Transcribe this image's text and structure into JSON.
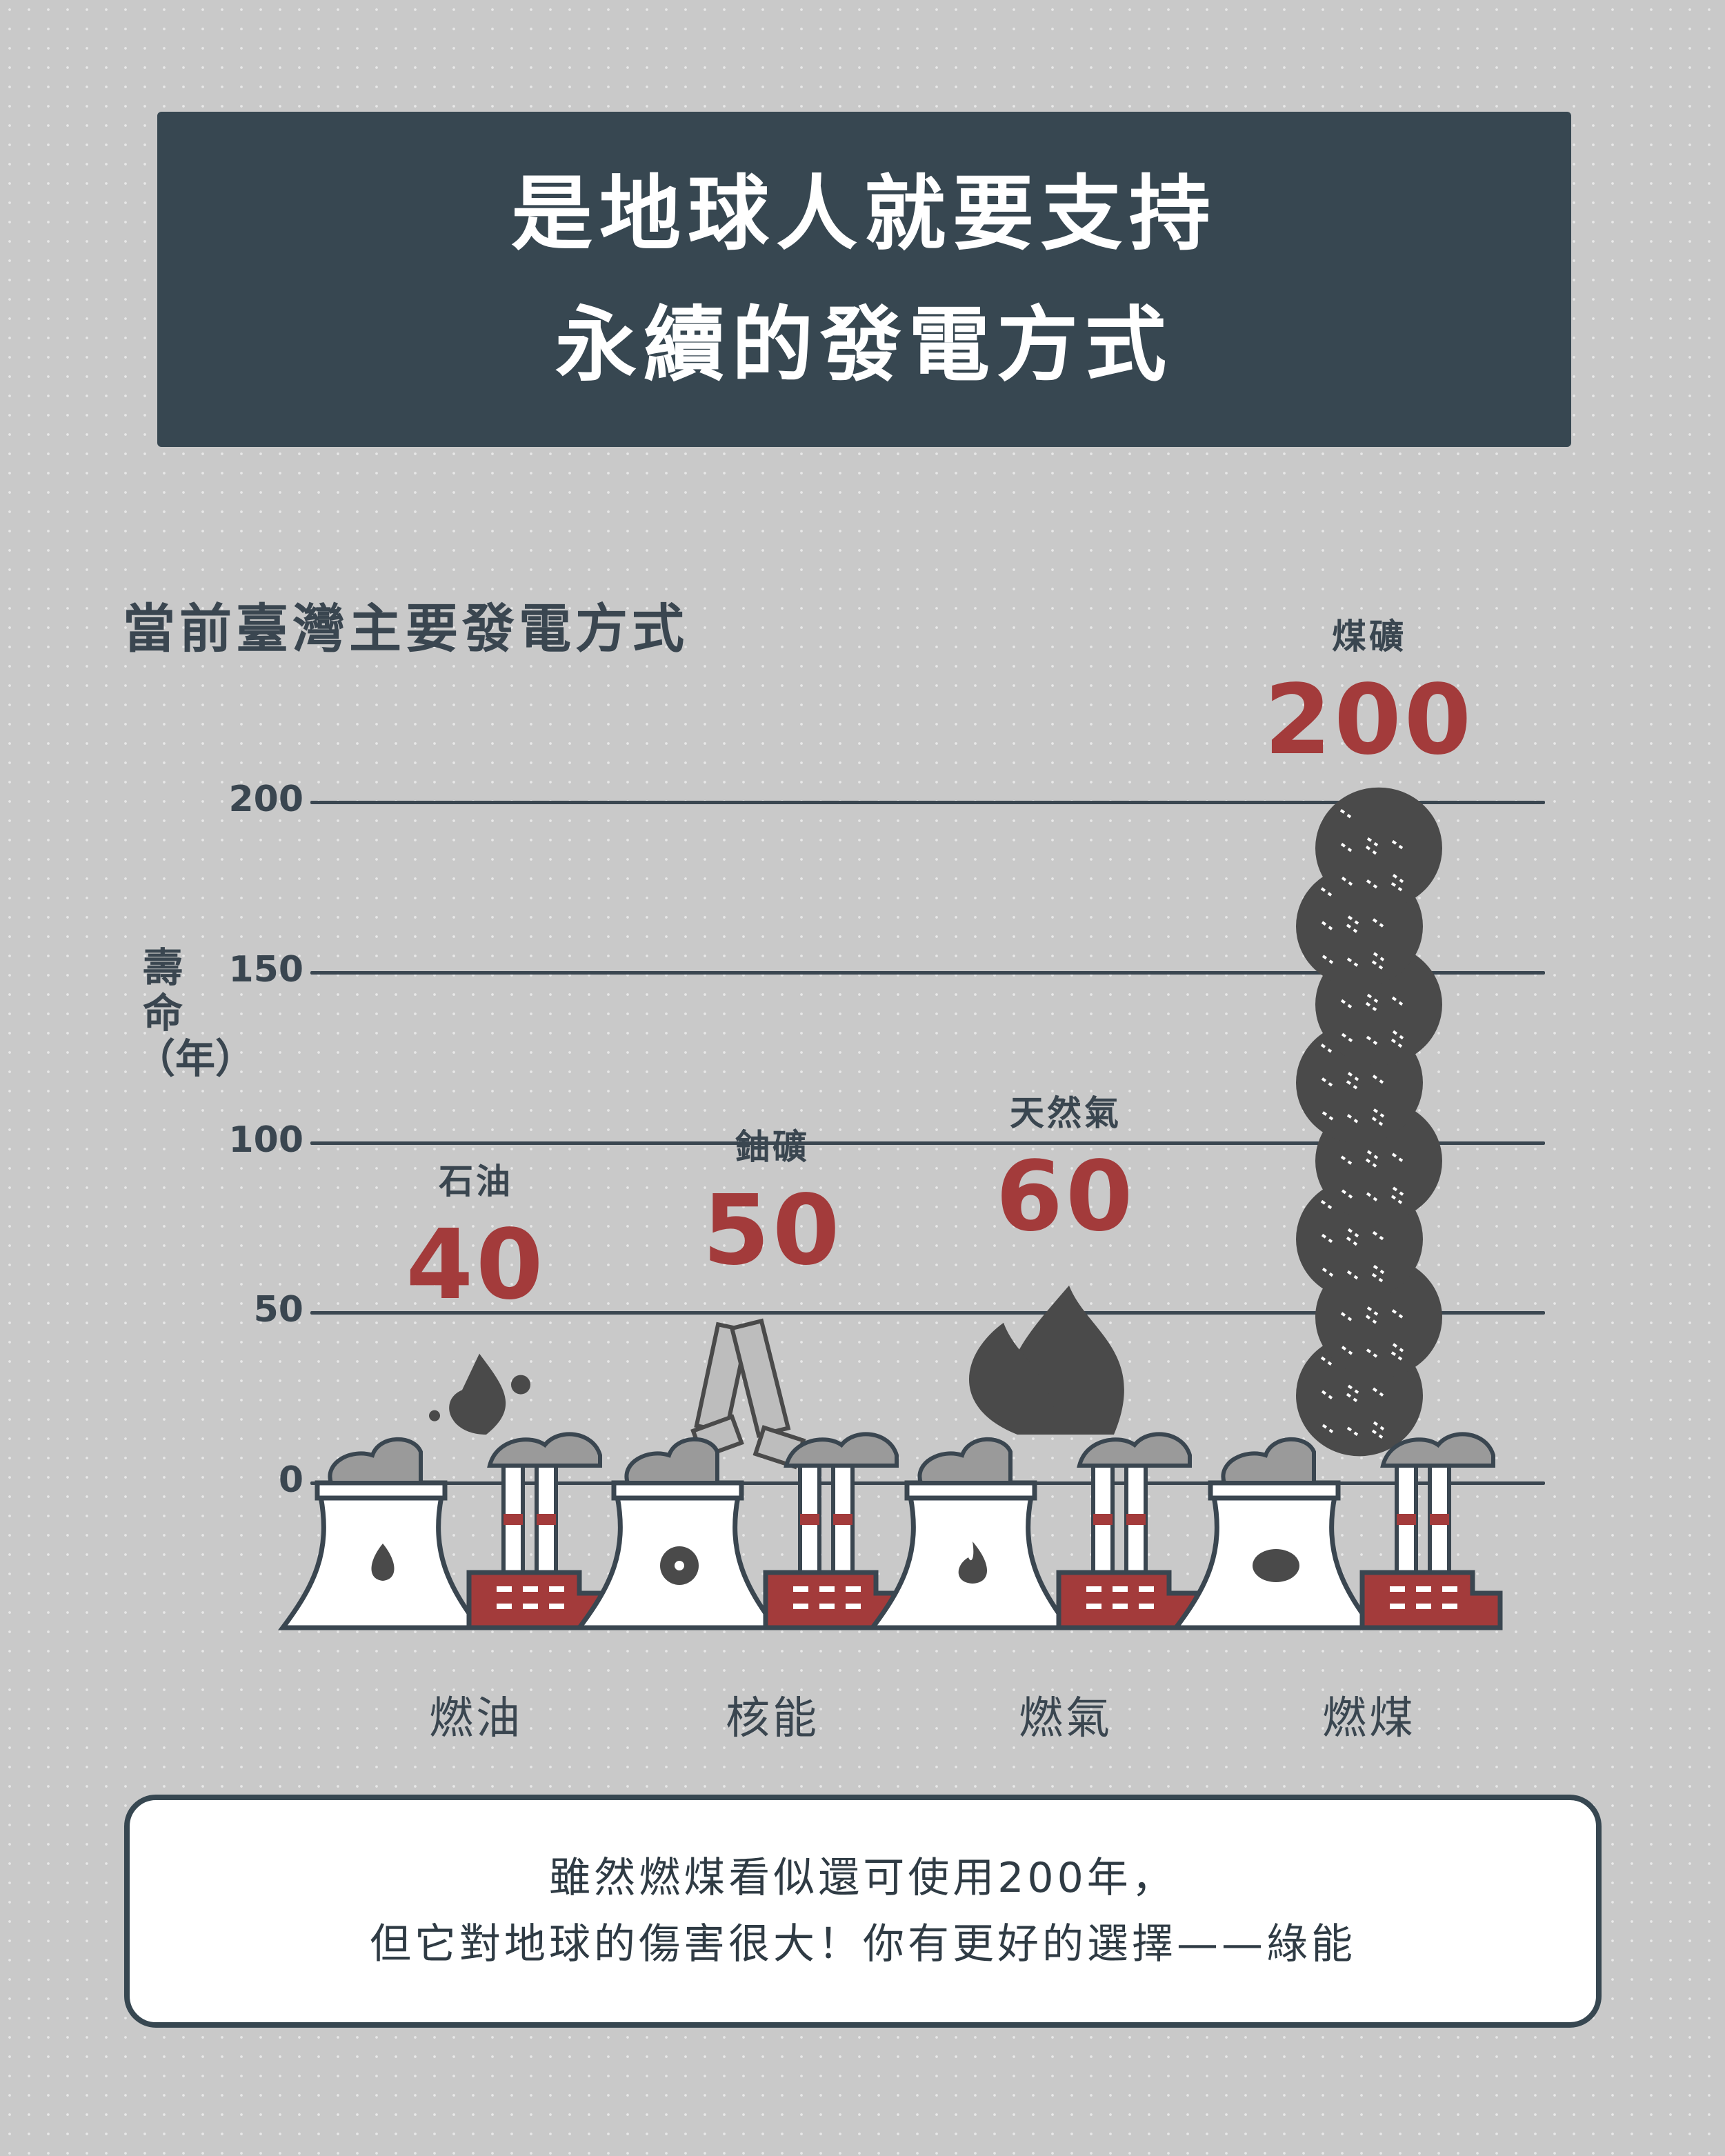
{
  "title": {
    "line1": "是地球人就要支持",
    "line2": "永續的發電方式"
  },
  "chart_data": {
    "type": "bar",
    "title": "當前臺灣主要發電方式",
    "ylabel": "壽命（年）",
    "ylim": [
      0,
      200
    ],
    "yticks": [
      "0",
      "50",
      "100",
      "150",
      "200"
    ],
    "categories": [
      "燃油",
      "核能",
      "燃氣",
      "燃煤"
    ],
    "resources": [
      "石油",
      "鈾礦",
      "天然氣",
      "煤礦"
    ],
    "values": [
      40,
      50,
      60,
      200
    ],
    "value_labels": [
      "40",
      "50",
      "60",
      "200"
    ],
    "grid": true,
    "colors": {
      "value": "#a33b3b",
      "smoke": "#4a4a4a",
      "line": "#3a4650",
      "factory": "#a33b3b"
    }
  },
  "note": {
    "line1": "雖然燃煤看似還可使用200年，",
    "line2": "但它對地球的傷害很大！你有更好的選擇——綠能"
  },
  "icons": [
    "oil-drop-icon",
    "radiation-icon",
    "flame-icon",
    "coal-lump-icon"
  ]
}
